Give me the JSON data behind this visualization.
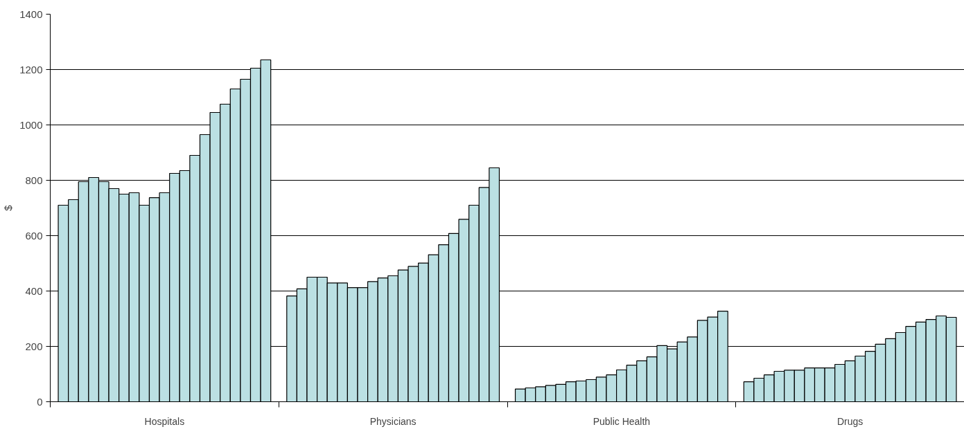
{
  "chart_data": {
    "type": "bar",
    "ylabel": "$",
    "categories": [
      "Hospitals",
      "Physicians",
      "Public Health",
      "Drugs"
    ],
    "series": [
      {
        "color": "#bbe0e3",
        "values": [
          710,
          382,
          46,
          72
        ]
      },
      {
        "color": "#bbe0e3",
        "values": [
          730,
          408,
          50,
          85
        ]
      },
      {
        "color": "#bbe0e3",
        "values": [
          795,
          450,
          54,
          97
        ]
      },
      {
        "color": "#bbe0e3",
        "values": [
          810,
          450,
          59,
          110
        ]
      },
      {
        "color": "#bbe0e3",
        "values": [
          795,
          429,
          63,
          114
        ]
      },
      {
        "color": "#bbe0e3",
        "values": [
          770,
          429,
          72,
          114
        ]
      },
      {
        "color": "#bbe0e3",
        "values": [
          750,
          412,
          75,
          122
        ]
      },
      {
        "color": "#bbe0e3",
        "values": [
          755,
          412,
          80,
          122
        ]
      },
      {
        "color": "#bbe0e3",
        "values": [
          710,
          434,
          89,
          122
        ]
      },
      {
        "color": "#bbe0e3",
        "values": [
          737,
          447,
          97,
          135
        ]
      },
      {
        "color": "#bbe0e3",
        "values": [
          755,
          455,
          115,
          148
        ]
      },
      {
        "color": "#bbe0e3",
        "values": [
          825,
          476,
          132,
          165
        ]
      },
      {
        "color": "#bbe0e3",
        "values": [
          835,
          489,
          148,
          182
        ]
      },
      {
        "color": "#bbe0e3",
        "values": [
          890,
          501,
          162,
          208
        ]
      },
      {
        "color": "#bbe0e3",
        "values": [
          965,
          531,
          203,
          228
        ]
      },
      {
        "color": "#bbe0e3",
        "values": [
          1045,
          567,
          191,
          250
        ]
      },
      {
        "color": "#bbe0e3",
        "values": [
          1075,
          608,
          216,
          272
        ]
      },
      {
        "color": "#bbe0e3",
        "values": [
          1130,
          659,
          234,
          288
        ]
      },
      {
        "color": "#bbe0e3",
        "values": [
          1165,
          710,
          294,
          297
        ]
      },
      {
        "color": "#bbe0e3",
        "values": [
          1205,
          774,
          306,
          310
        ]
      },
      {
        "color": "#bbe0e3",
        "values": [
          1235,
          845,
          327,
          305
        ]
      }
    ],
    "ylim": [
      0,
      1400
    ],
    "yticks": [
      0,
      200,
      400,
      600,
      800,
      1000,
      1200,
      1400
    ],
    "grid": "y"
  }
}
